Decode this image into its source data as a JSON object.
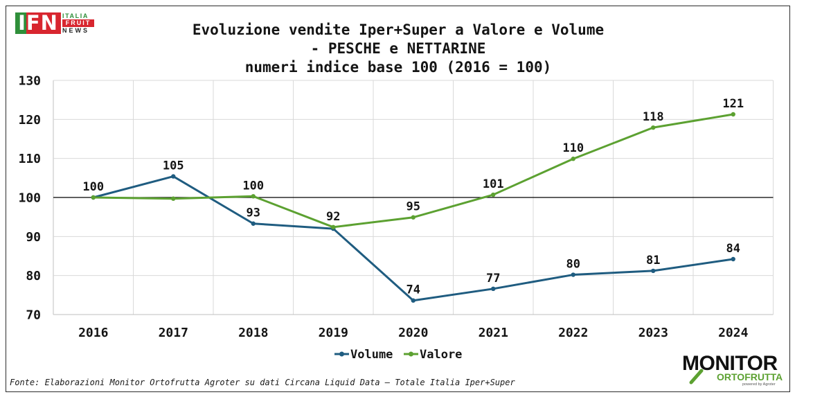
{
  "logos": {
    "ifn": {
      "mark": "IFN",
      "line1": "ITALIA",
      "line2": "FRUIT",
      "line3": "NEWS"
    },
    "monitor": {
      "line1": "MONITOR",
      "line2": "ORTOFRUTTA",
      "powered": "powered by Agroter"
    }
  },
  "icons": {
    "monitor_logo_glyph": "magnifier-icon"
  },
  "colors": {
    "volume": "#1F5C80",
    "valore": "#5CA131",
    "gridline": "#D9D9D9",
    "axis": "#BFBFBF",
    "reference_line": "#000000",
    "ifn_red": "#D8262F",
    "ifn_green": "#2F8F3A"
  },
  "footnote": "Fonte: Elaborazioni Monitor Ortofrutta Agroter su dati Circana Liquid Data – Totale Italia Iper+Super",
  "chart_data": {
    "type": "line",
    "title_lines": [
      "Evoluzione vendite Iper+Super a Valore e Volume",
      "- PESCHE e NETTARINE",
      "numeri indice base 100 (2016 = 100)"
    ],
    "xlabel": "",
    "ylabel": "",
    "categories": [
      "2016",
      "2017",
      "2018",
      "2019",
      "2020",
      "2021",
      "2022",
      "2023",
      "2024"
    ],
    "ylim": [
      70,
      130
    ],
    "yticks": [
      70,
      80,
      90,
      100,
      110,
      120,
      130
    ],
    "reference_line": 100,
    "grid": true,
    "legend": "bottom-center",
    "series": [
      {
        "name": "Volume",
        "color": "#1F5C80",
        "values": [
          100,
          105.4,
          93.3,
          92.0,
          73.6,
          76.6,
          80.2,
          81.2,
          84.2
        ],
        "labels": [
          null,
          "105",
          "93",
          null,
          "74",
          "77",
          "80",
          "81",
          "84"
        ]
      },
      {
        "name": "Valore",
        "color": "#5CA131",
        "values": [
          100,
          99.7,
          100.3,
          92.4,
          94.9,
          100.7,
          109.9,
          117.9,
          121.3
        ],
        "labels": [
          "100",
          null,
          "100",
          "92",
          "95",
          "101",
          "110",
          "118",
          "121"
        ]
      }
    ]
  }
}
